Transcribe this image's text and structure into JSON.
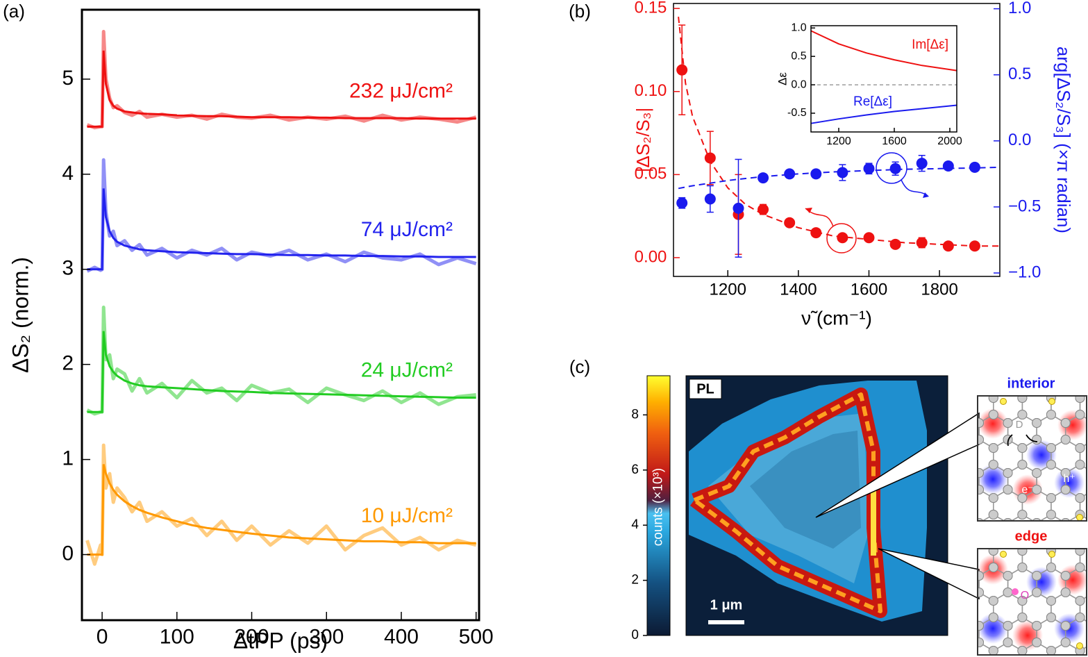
{
  "chart_data": [
    {
      "type": "line",
      "panel": "(a)",
      "xlabel": "ΔtPP (ps)",
      "ylabel": "ΔS₂ (norm.)",
      "xlim": [
        -27,
        504
      ],
      "xticks": [
        0,
        100,
        200,
        300,
        400,
        500
      ],
      "ylim": [
        -0.69,
        5.73
      ],
      "yticks": [
        0,
        1,
        2,
        3,
        4,
        5
      ],
      "x": [
        -20,
        -10,
        -2,
        0,
        2,
        5,
        10,
        15,
        20,
        30,
        40,
        50,
        60,
        80,
        100,
        120,
        140,
        160,
        180,
        200,
        225,
        250,
        275,
        300,
        325,
        350,
        375,
        400,
        425,
        450,
        475,
        500
      ],
      "series": [
        {
          "name": "232 μJ/cm²",
          "color": "#ee1111",
          "values": [
            4.52,
            4.49,
            4.5,
            4.5,
            5.5,
            5.0,
            4.8,
            4.7,
            4.72,
            4.65,
            4.62,
            4.66,
            4.6,
            4.63,
            4.6,
            4.62,
            4.58,
            4.63,
            4.6,
            4.59,
            4.62,
            4.57,
            4.6,
            4.58,
            4.61,
            4.56,
            4.62,
            4.57,
            4.6,
            4.58,
            4.55,
            4.6
          ],
          "fit": [
            4.5,
            4.5,
            4.5,
            4.5,
            5.3,
            4.95,
            4.78,
            4.72,
            4.69,
            4.66,
            4.65,
            4.64,
            4.635,
            4.63,
            4.62,
            4.615,
            4.61,
            4.61,
            4.605,
            4.6,
            4.6,
            4.6,
            4.595,
            4.595,
            4.59,
            4.59,
            4.59,
            4.59,
            4.585,
            4.585,
            4.585,
            4.585
          ]
        },
        {
          "name": "74 μJ/cm²",
          "color": "#2222ee",
          "values": [
            2.98,
            3.02,
            2.99,
            3.0,
            4.15,
            3.6,
            3.35,
            3.4,
            3.25,
            3.3,
            3.2,
            3.26,
            3.15,
            3.22,
            3.12,
            3.2,
            3.15,
            3.22,
            3.1,
            3.18,
            3.14,
            3.2,
            3.1,
            3.16,
            3.08,
            3.18,
            3.12,
            3.1,
            3.16,
            3.05,
            3.12,
            3.06
          ],
          "fit": [
            3.0,
            3.0,
            3.0,
            3.0,
            3.85,
            3.55,
            3.4,
            3.33,
            3.29,
            3.25,
            3.23,
            3.21,
            3.2,
            3.19,
            3.18,
            3.175,
            3.17,
            3.165,
            3.16,
            3.16,
            3.155,
            3.15,
            3.15,
            3.145,
            3.145,
            3.14,
            3.14,
            3.135,
            3.135,
            3.13,
            3.13,
            3.13
          ]
        },
        {
          "name": "24 μJ/cm²",
          "color": "#22cc22",
          "values": [
            1.52,
            1.48,
            1.5,
            1.5,
            2.6,
            2.05,
            2.1,
            1.85,
            1.95,
            1.9,
            1.72,
            1.85,
            1.7,
            1.8,
            1.65,
            1.83,
            1.7,
            1.75,
            1.62,
            1.78,
            1.7,
            1.74,
            1.6,
            1.75,
            1.68,
            1.62,
            1.72,
            1.6,
            1.7,
            1.58,
            1.66,
            1.68
          ],
          "fit": [
            1.5,
            1.5,
            1.5,
            1.5,
            2.35,
            2.1,
            1.98,
            1.92,
            1.88,
            1.83,
            1.8,
            1.78,
            1.77,
            1.76,
            1.75,
            1.74,
            1.73,
            1.72,
            1.715,
            1.71,
            1.7,
            1.695,
            1.69,
            1.685,
            1.68,
            1.675,
            1.67,
            1.665,
            1.66,
            1.655,
            1.65,
            1.65
          ]
        },
        {
          "name": "10 μJ/cm²",
          "color": "#ff9900",
          "values": [
            0.15,
            -0.1,
            0.1,
            0,
            1.15,
            0.7,
            0.85,
            0.55,
            0.7,
            0.6,
            0.45,
            0.55,
            0.35,
            0.45,
            0.3,
            0.38,
            0.2,
            0.35,
            0.15,
            0.3,
            0.1,
            0.25,
            0.12,
            0.3,
            0.05,
            0.2,
            0.28,
            0.1,
            0.18,
            0.05,
            0.15,
            0.1
          ],
          "fit": [
            0,
            0,
            0,
            0,
            0.95,
            0.85,
            0.75,
            0.68,
            0.63,
            0.56,
            0.51,
            0.47,
            0.44,
            0.39,
            0.35,
            0.31,
            0.28,
            0.26,
            0.24,
            0.22,
            0.2,
            0.18,
            0.17,
            0.16,
            0.15,
            0.14,
            0.14,
            0.13,
            0.13,
            0.12,
            0.12,
            0.12
          ]
        }
      ]
    },
    {
      "type": "scatter",
      "panel": "(b)",
      "xlabel": "ν̃ (cm⁻¹)",
      "ylabel": "|ΔS₂/S₃|",
      "y2label": "arg[ΔS₂/S₃] (×π radian)",
      "xlim": [
        1046,
        1971
      ],
      "xticks": [
        1200,
        1400,
        1600,
        1800
      ],
      "ylim": [
        -0.0113,
        0.153
      ],
      "yticks": [
        {
          "value": 0,
          "label": "0.00"
        },
        {
          "value": 0.05,
          "label": "0.05"
        },
        {
          "value": 0.1,
          "label": "0.10"
        },
        {
          "value": 0.15,
          "label": "0.15"
        }
      ],
      "y2lim": [
        -1.026,
        1.04
      ],
      "y2ticks": [
        {
          "value": -1,
          "label": "−1.0"
        },
        {
          "value": -0.5,
          "label": "−0.5"
        },
        {
          "value": 0,
          "label": "0.0"
        },
        {
          "value": 0.5,
          "label": "0.5"
        },
        {
          "value": 1,
          "label": "1.0"
        }
      ],
      "x": [
        1070,
        1150,
        1230,
        1300,
        1375,
        1450,
        1525,
        1600,
        1675,
        1750,
        1825,
        1900
      ],
      "fit_x": [
        1060,
        1080,
        1100,
        1150,
        1200,
        1250,
        1300,
        1400,
        1500,
        1600,
        1700,
        1800,
        1900,
        1971
      ],
      "series": [
        {
          "color": "#ee1111",
          "axis": "y",
          "values": [
            0.113,
            0.06,
            0.026,
            0.029,
            0.021,
            0.015,
            0.012,
            0.012,
            0.008,
            0.009,
            0.007,
            0.007
          ],
          "errors": [
            0.027,
            0.016,
            0.024,
            0.003,
            0.002,
            0.002,
            0.002,
            0.002,
            0.002,
            0.003,
            0.002,
            0.002
          ],
          "fit": [
            0.145,
            0.105,
            0.085,
            0.058,
            0.042,
            0.032,
            0.026,
            0.018,
            0.013,
            0.011,
            0.009,
            0.008,
            0.007,
            0.007
          ]
        },
        {
          "color": "#1a1aee",
          "axis": "y2",
          "values": [
            -0.47,
            -0.44,
            -0.51,
            -0.28,
            -0.25,
            -0.25,
            -0.24,
            -0.21,
            -0.21,
            -0.17,
            -0.19,
            -0.2
          ],
          "errors": [
            0.04,
            0.1,
            0.37,
            0.03,
            0.03,
            0.03,
            0.06,
            0.04,
            0.05,
            0.06,
            0.03,
            0.03
          ],
          "fit": [
            -0.36,
            -0.35,
            -0.34,
            -0.32,
            -0.3,
            -0.285,
            -0.27,
            -0.25,
            -0.235,
            -0.225,
            -0.215,
            -0.21,
            -0.205,
            -0.2
          ]
        }
      ]
    },
    {
      "type": "line",
      "ylabel": "Δε",
      "xlim": [
        1000,
        2050
      ],
      "xticks": [
        1200,
        1600,
        2000
      ],
      "ylim": [
        -0.83,
        1.04
      ],
      "yticks": [
        {
          "value": -0.5,
          "label": "-0.5"
        },
        {
          "value": 0,
          "label": "0.0"
        },
        {
          "value": 0.5,
          "label": "0.5"
        },
        {
          "value": 1,
          "label": "1.0"
        }
      ],
      "hline": 0,
      "x": [
        1000,
        1200,
        1400,
        1600,
        1800,
        2050
      ],
      "series": [
        {
          "name": "Im[Δε]",
          "color": "#ee1111",
          "values": [
            0.95,
            0.72,
            0.56,
            0.44,
            0.34,
            0.25
          ]
        },
        {
          "name": "Re[Δε]",
          "color": "#1a1aee",
          "values": [
            -0.68,
            -0.6,
            -0.53,
            -0.47,
            -0.42,
            -0.36
          ]
        }
      ]
    },
    {
      "type": "colorbar",
      "panel": "(c)",
      "ylabel": "counts (×10³)",
      "ylim": [
        0,
        9.42
      ],
      "yticks": [
        0,
        2,
        4,
        6,
        8
      ]
    }
  ],
  "pl_map": {
    "title": "PL",
    "scale_bar": "1 μm"
  },
  "schematics": [
    {
      "title": "interior",
      "color": "#1a1aee",
      "labels": [
        "D",
        "h⁺",
        "e⁻"
      ]
    },
    {
      "title": "edge",
      "color": "#ee1111",
      "labels": [
        "O"
      ]
    }
  ]
}
